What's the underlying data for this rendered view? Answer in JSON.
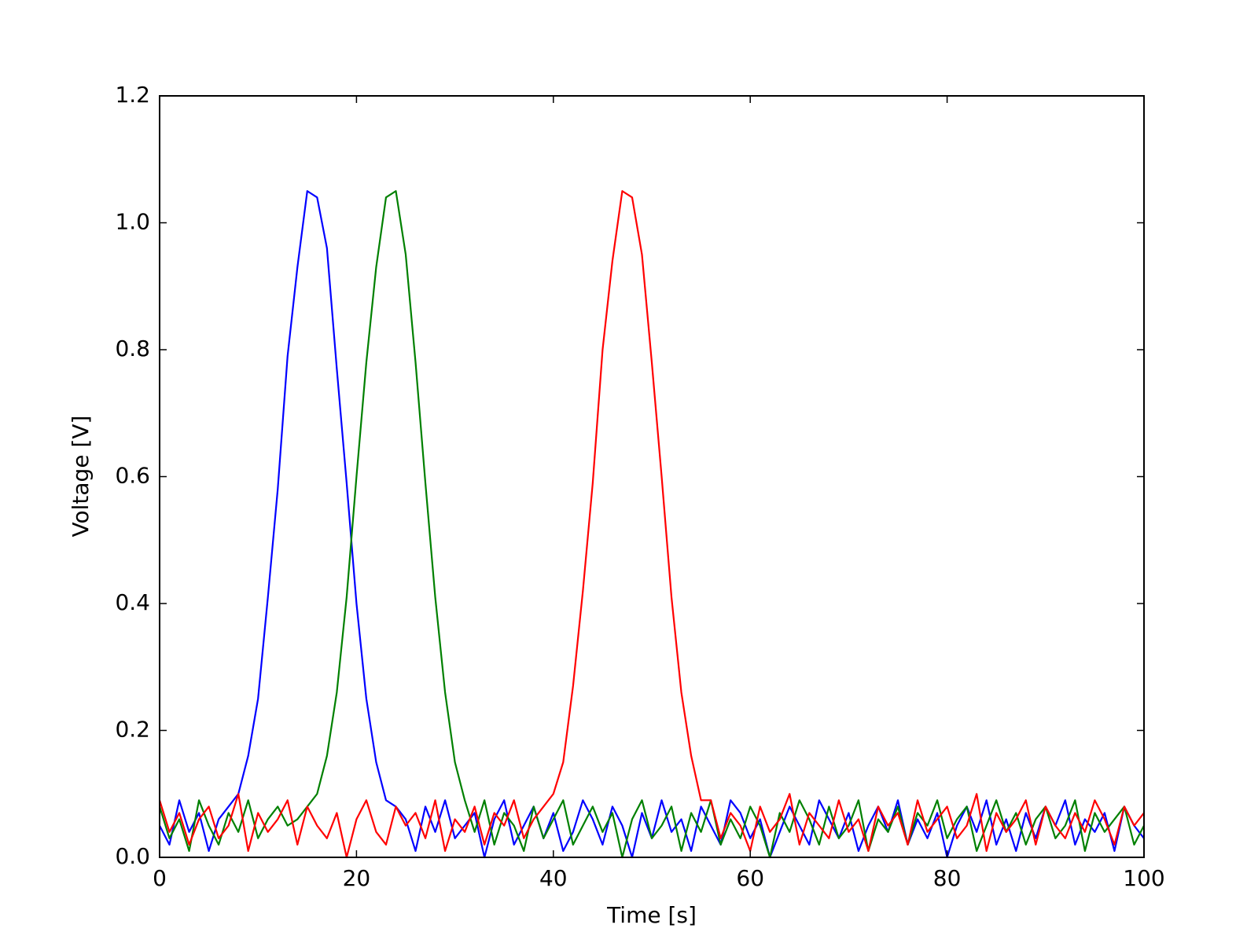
{
  "chart_data": {
    "type": "line",
    "xlabel": "Time [s]",
    "ylabel": "Voltage [V]",
    "x": [
      0,
      1,
      2,
      3,
      4,
      5,
      6,
      7,
      8,
      9,
      10,
      11,
      12,
      13,
      14,
      15,
      16,
      17,
      18,
      19,
      20,
      21,
      22,
      23,
      24,
      25,
      26,
      27,
      28,
      29,
      30,
      31,
      32,
      33,
      34,
      35,
      36,
      37,
      38,
      39,
      40,
      41,
      42,
      43,
      44,
      45,
      46,
      47,
      48,
      49,
      50,
      51,
      52,
      53,
      54,
      55,
      56,
      57,
      58,
      59,
      60,
      61,
      62,
      63,
      64,
      65,
      66,
      67,
      68,
      69,
      70,
      71,
      72,
      73,
      74,
      75,
      76,
      77,
      78,
      79,
      80,
      81,
      82,
      83,
      84,
      85,
      86,
      87,
      88,
      89,
      90,
      91,
      92,
      93,
      94,
      95,
      96,
      97,
      98,
      99,
      100
    ],
    "series": [
      {
        "color": "#0000ff",
        "values": [
          0.05,
          0.02,
          0.09,
          0.04,
          0.07,
          0.01,
          0.06,
          0.08,
          0.1,
          0.16,
          0.25,
          0.41,
          0.58,
          0.79,
          0.93,
          1.05,
          1.04,
          0.96,
          0.77,
          0.59,
          0.4,
          0.25,
          0.15,
          0.09,
          0.08,
          0.06,
          0.01,
          0.08,
          0.04,
          0.09,
          0.03,
          0.05,
          0.07,
          0.0,
          0.06,
          0.09,
          0.02,
          0.05,
          0.08,
          0.03,
          0.07,
          0.01,
          0.04,
          0.09,
          0.06,
          0.02,
          0.08,
          0.05,
          0.0,
          0.07,
          0.03,
          0.09,
          0.04,
          0.06,
          0.01,
          0.08,
          0.05,
          0.02,
          0.09,
          0.07,
          0.03,
          0.06,
          0.0,
          0.04,
          0.08,
          0.05,
          0.02,
          0.09,
          0.06,
          0.03,
          0.07,
          0.01,
          0.05,
          0.08,
          0.04,
          0.09,
          0.02,
          0.06,
          0.03,
          0.07,
          0.0,
          0.05,
          0.08,
          0.04,
          0.09,
          0.02,
          0.06,
          0.01,
          0.07,
          0.03,
          0.08,
          0.05,
          0.09,
          0.02,
          0.06,
          0.04,
          0.07,
          0.01,
          0.08,
          0.05,
          0.03
        ]
      },
      {
        "color": "#008000",
        "values": [
          0.08,
          0.03,
          0.06,
          0.01,
          0.09,
          0.05,
          0.02,
          0.07,
          0.04,
          0.09,
          0.03,
          0.06,
          0.08,
          0.05,
          0.06,
          0.08,
          0.1,
          0.16,
          0.26,
          0.41,
          0.6,
          0.78,
          0.93,
          1.04,
          1.05,
          0.95,
          0.78,
          0.59,
          0.41,
          0.26,
          0.15,
          0.09,
          0.04,
          0.09,
          0.02,
          0.07,
          0.05,
          0.01,
          0.08,
          0.03,
          0.06,
          0.09,
          0.02,
          0.05,
          0.08,
          0.04,
          0.07,
          0.0,
          0.06,
          0.09,
          0.03,
          0.05,
          0.08,
          0.01,
          0.07,
          0.04,
          0.09,
          0.02,
          0.06,
          0.03,
          0.08,
          0.05,
          0.0,
          0.07,
          0.04,
          0.09,
          0.06,
          0.02,
          0.08,
          0.03,
          0.05,
          0.09,
          0.01,
          0.06,
          0.04,
          0.08,
          0.02,
          0.07,
          0.05,
          0.09,
          0.03,
          0.06,
          0.08,
          0.01,
          0.05,
          0.09,
          0.04,
          0.07,
          0.02,
          0.06,
          0.08,
          0.03,
          0.05,
          0.09,
          0.01,
          0.07,
          0.04,
          0.06,
          0.08,
          0.02,
          0.05
        ]
      },
      {
        "color": "#ff0000",
        "values": [
          0.09,
          0.04,
          0.07,
          0.02,
          0.06,
          0.08,
          0.03,
          0.05,
          0.1,
          0.01,
          0.07,
          0.04,
          0.06,
          0.09,
          0.02,
          0.08,
          0.05,
          0.03,
          0.07,
          0.0,
          0.06,
          0.09,
          0.04,
          0.02,
          0.08,
          0.05,
          0.07,
          0.03,
          0.09,
          0.01,
          0.06,
          0.04,
          0.08,
          0.02,
          0.07,
          0.05,
          0.09,
          0.03,
          0.06,
          0.08,
          0.1,
          0.15,
          0.27,
          0.42,
          0.59,
          0.8,
          0.94,
          1.05,
          1.04,
          0.95,
          0.78,
          0.6,
          0.41,
          0.26,
          0.16,
          0.09,
          0.09,
          0.03,
          0.07,
          0.05,
          0.01,
          0.08,
          0.04,
          0.06,
          0.1,
          0.02,
          0.07,
          0.05,
          0.03,
          0.09,
          0.04,
          0.06,
          0.01,
          0.08,
          0.05,
          0.07,
          0.02,
          0.09,
          0.04,
          0.06,
          0.08,
          0.03,
          0.05,
          0.1,
          0.01,
          0.07,
          0.04,
          0.06,
          0.09,
          0.02,
          0.08,
          0.05,
          0.03,
          0.07,
          0.04,
          0.09,
          0.06,
          0.02,
          0.08,
          0.05,
          0.07
        ]
      }
    ],
    "xlim": [
      0,
      100
    ],
    "xticks": [
      0,
      20,
      40,
      60,
      80,
      100
    ],
    "ylim": [
      0,
      1.2
    ],
    "yticks": [
      {
        "value": 0,
        "label": "0.0"
      },
      0.2,
      0.4,
      0.6,
      0.8,
      {
        "value": 1,
        "label": "1.0"
      },
      1.2
    ],
    "grid": false
  }
}
